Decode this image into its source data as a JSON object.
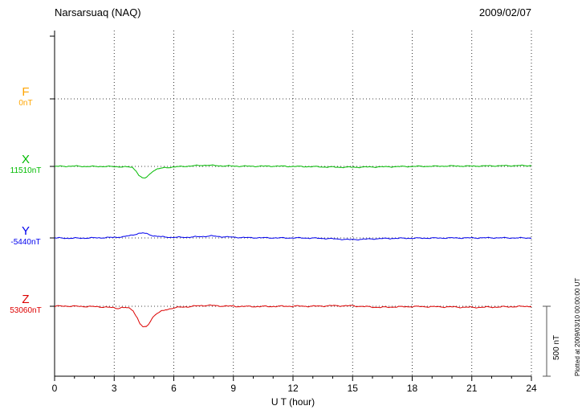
{
  "plotted_note": "Plotted at 2009/03/10 00:00:00 UT",
  "chart_data": {
    "type": "line",
    "title": "Narsarsuaq (NAQ)",
    "date": "2009/02/07",
    "xlabel": "U T (hour)",
    "ylabel": "",
    "x_range": [
      0,
      24
    ],
    "x_ticks": [
      0,
      3,
      6,
      9,
      12,
      15,
      18,
      21,
      24
    ],
    "x_minor_tick_step": 1,
    "grid": "dotted",
    "scale_bar_nT": 500,
    "scale_bar_label": "500 nT",
    "series": [
      {
        "name": "F",
        "baseline_label": "0nT",
        "baseline_nT": 0,
        "color": "#ffa500",
        "noise_amp_nT": 0,
        "points": []
      },
      {
        "name": "X",
        "baseline_label": "11510nT",
        "baseline_nT": 11510,
        "color": "#00bb00",
        "noise_amp_nT": 5,
        "points": [
          [
            0,
            0
          ],
          [
            0.5,
            1
          ],
          [
            1,
            2
          ],
          [
            1.5,
            0
          ],
          [
            2,
            -1
          ],
          [
            2.5,
            0
          ],
          [
            3,
            -2
          ],
          [
            3.5,
            -3
          ],
          [
            3.9,
            -6
          ],
          [
            4.1,
            -30
          ],
          [
            4.25,
            -65
          ],
          [
            4.4,
            -82
          ],
          [
            4.55,
            -85
          ],
          [
            4.7,
            -70
          ],
          [
            4.85,
            -45
          ],
          [
            5,
            -28
          ],
          [
            5.2,
            -18
          ],
          [
            5.5,
            -10
          ],
          [
            6,
            -4
          ],
          [
            6.5,
            0
          ],
          [
            7,
            4
          ],
          [
            7.6,
            9
          ],
          [
            8.2,
            5
          ],
          [
            9,
            2
          ],
          [
            10,
            1
          ],
          [
            11,
            2
          ],
          [
            12,
            0
          ],
          [
            13,
            -2
          ],
          [
            14,
            -5
          ],
          [
            15,
            -6
          ],
          [
            16,
            -4
          ],
          [
            17,
            -2
          ],
          [
            18,
            0
          ],
          [
            19,
            1
          ],
          [
            20,
            3
          ],
          [
            21,
            2
          ],
          [
            22,
            4
          ],
          [
            23,
            5
          ],
          [
            24,
            6
          ]
        ]
      },
      {
        "name": "Y",
        "baseline_label": "-5440nT",
        "baseline_nT": -5440,
        "color": "#0000ee",
        "noise_amp_nT": 5,
        "points": [
          [
            0,
            0
          ],
          [
            0.7,
            -2
          ],
          [
            1.5,
            -1
          ],
          [
            2.2,
            1
          ],
          [
            3,
            4
          ],
          [
            3.5,
            9
          ],
          [
            3.9,
            20
          ],
          [
            4.2,
            32
          ],
          [
            4.45,
            35
          ],
          [
            4.7,
            27
          ],
          [
            5,
            15
          ],
          [
            5.4,
            8
          ],
          [
            6,
            4
          ],
          [
            6.7,
            5
          ],
          [
            7.4,
            10
          ],
          [
            7.9,
            14
          ],
          [
            8.4,
            9
          ],
          [
            9,
            5
          ],
          [
            9.7,
            2
          ],
          [
            10.5,
            1
          ],
          [
            11.5,
            0
          ],
          [
            12.5,
            0
          ],
          [
            13.5,
            -3
          ],
          [
            14.3,
            -8
          ],
          [
            14.9,
            -12
          ],
          [
            15.6,
            -9
          ],
          [
            16.3,
            -5
          ],
          [
            17,
            -3
          ],
          [
            18,
            -2
          ],
          [
            19,
            -1
          ],
          [
            20,
            0
          ],
          [
            21,
            0
          ],
          [
            22,
            1
          ],
          [
            23,
            0
          ],
          [
            24,
            0
          ]
        ]
      },
      {
        "name": "Z",
        "baseline_label": "53060nT",
        "baseline_nT": 53060,
        "color": "#dd0000",
        "noise_amp_nT": 6,
        "points": [
          [
            0,
            0
          ],
          [
            0.5,
            2
          ],
          [
            1,
            0
          ],
          [
            1.8,
            -2
          ],
          [
            2.5,
            -5
          ],
          [
            2.9,
            -10
          ],
          [
            3.15,
            -15
          ],
          [
            3.4,
            -8
          ],
          [
            3.7,
            -12
          ],
          [
            3.95,
            -30
          ],
          [
            4.15,
            -80
          ],
          [
            4.3,
            -125
          ],
          [
            4.45,
            -148
          ],
          [
            4.6,
            -150
          ],
          [
            4.75,
            -125
          ],
          [
            4.9,
            -85
          ],
          [
            5.1,
            -55
          ],
          [
            5.35,
            -38
          ],
          [
            5.6,
            -25
          ],
          [
            5.9,
            -14
          ],
          [
            6.3,
            -7
          ],
          [
            6.8,
            -2
          ],
          [
            7.3,
            4
          ],
          [
            7.7,
            7
          ],
          [
            8.2,
            3
          ],
          [
            9,
            0
          ],
          [
            10,
            -2
          ],
          [
            11,
            -1
          ],
          [
            12,
            1
          ],
          [
            13,
            0
          ],
          [
            14,
            4
          ],
          [
            15,
            3
          ],
          [
            15.7,
            -3
          ],
          [
            16.4,
            -8
          ],
          [
            17,
            -5
          ],
          [
            18,
            -2
          ],
          [
            19,
            -3
          ],
          [
            20,
            -5
          ],
          [
            21,
            -8
          ],
          [
            22,
            -6
          ],
          [
            23,
            -3
          ],
          [
            24,
            0
          ]
        ]
      }
    ]
  }
}
